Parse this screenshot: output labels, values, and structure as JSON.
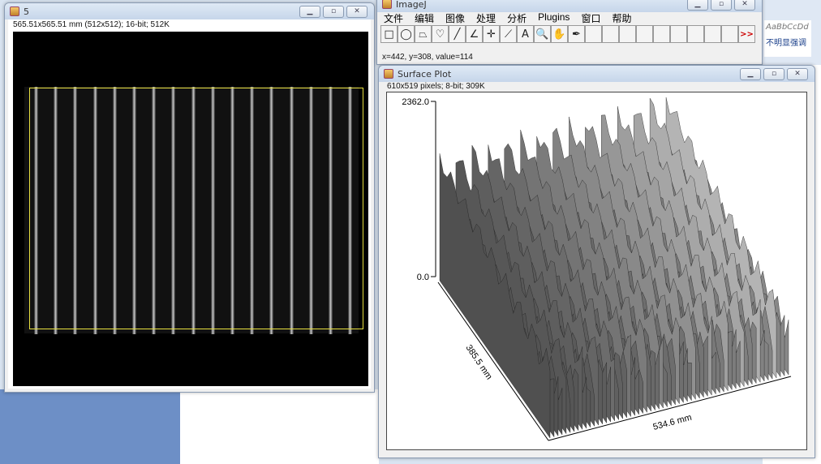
{
  "image_window": {
    "title": "5",
    "info": "565.51x565.51 mm (512x512); 16-bit; 512K",
    "stripe_count": 17
  },
  "imagej": {
    "title": "ImageJ",
    "menu": [
      "文件",
      "编辑",
      "图像",
      "处理",
      "分析",
      "Plugins",
      "窗口",
      "帮助"
    ],
    "tools": [
      "rectangle-icon",
      "oval-icon",
      "polygon-icon",
      "freehand-icon",
      "line-icon",
      "angle-icon",
      "point-icon",
      "wand-icon",
      "text-icon",
      "magnifier-icon",
      "hand-icon",
      "dropper-icon"
    ],
    "tool_glyphs": [
      "□",
      "◯",
      "⏢",
      "♡",
      "╱",
      "∠",
      "✛",
      "⟋",
      "A",
      "🔍",
      "✋",
      "✒"
    ],
    "more": ">>",
    "status": "x=442, y=308, value=114"
  },
  "word": {
    "style_sample": "AaBbCcDd",
    "style_name": "不明显强调"
  },
  "surface_plot": {
    "title": "Surface Plot",
    "info": "610x519 pixels; 8-bit; 309K",
    "z_max": "2362.0",
    "z_min": "0.0",
    "y_label": "385.5 mm",
    "x_label": "534.6 mm"
  }
}
